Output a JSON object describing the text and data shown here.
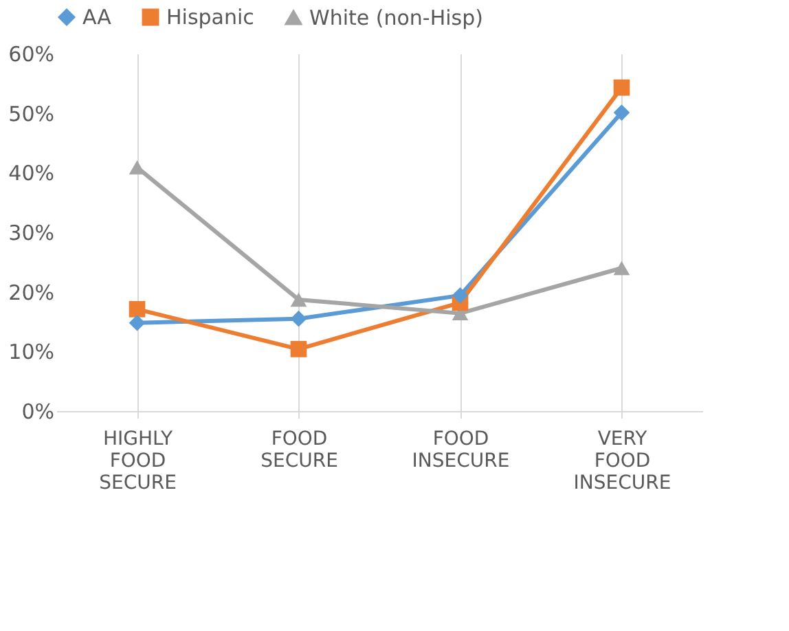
{
  "chart_data": {
    "type": "line",
    "categories": [
      "HIGHLY FOOD SECURE",
      "FOOD SECURE",
      "FOOD INSECURE",
      "VERY FOOD INSECURE"
    ],
    "series": [
      {
        "name": "AA",
        "color": "#5b9bd5",
        "marker": "diamond",
        "values": [
          14.8,
          15.5,
          19.4,
          50.1
        ]
      },
      {
        "name": "Hispanic",
        "color": "#ed7d31",
        "marker": "square",
        "values": [
          17.1,
          10.4,
          18.2,
          54.3
        ]
      },
      {
        "name": "White (non-Hisp)",
        "color": "#a5a5a5",
        "marker": "triangle",
        "values": [
          40.9,
          18.7,
          16.4,
          24.0
        ]
      }
    ],
    "ylim": [
      0,
      60
    ],
    "yticks": [
      {
        "value": 0,
        "label": "0%"
      },
      {
        "value": 10,
        "label": "10%"
      },
      {
        "value": 20,
        "label": "20%"
      },
      {
        "value": 30,
        "label": "30%"
      },
      {
        "value": 40,
        "label": "40%"
      },
      {
        "value": 50,
        "label": "50%"
      },
      {
        "value": 60,
        "label": "60%"
      }
    ],
    "grid": "x",
    "legend": "top",
    "line_style": "solid"
  }
}
